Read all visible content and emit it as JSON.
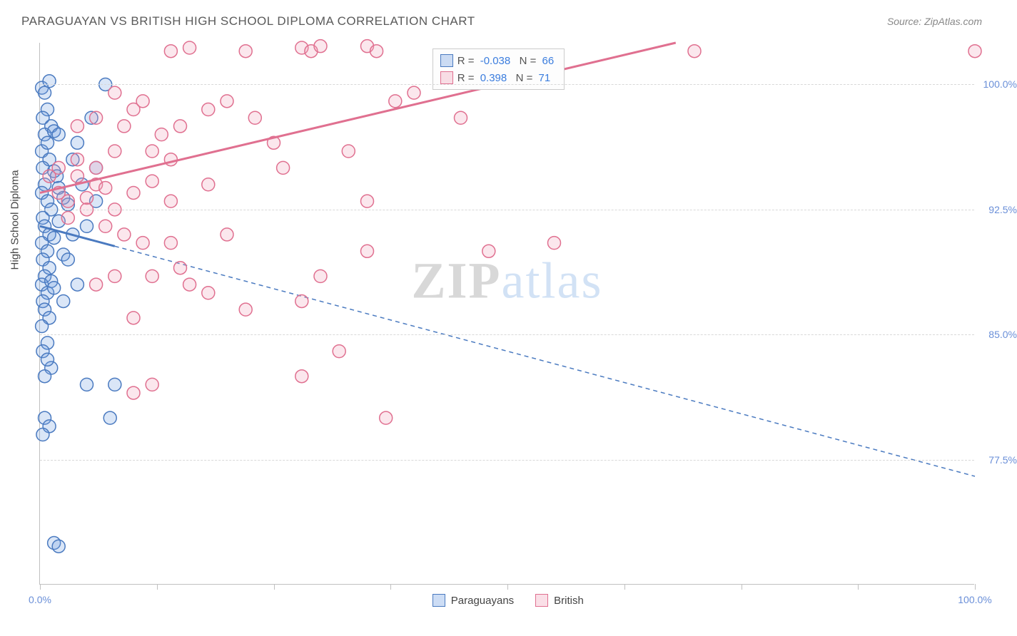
{
  "header": {
    "title": "PARAGUAYAN VS BRITISH HIGH SCHOOL DIPLOMA CORRELATION CHART",
    "source_prefix": "Source: ",
    "source_link": "ZipAtlas.com"
  },
  "chart": {
    "ylabel": "High School Diploma",
    "xlim": [
      0,
      100
    ],
    "ylim": [
      70,
      102.5
    ],
    "xtick_positions": [
      0,
      12.5,
      25,
      37.5,
      50,
      62.5,
      75,
      87.5,
      100
    ],
    "xtick_labels": {
      "0": "0.0%",
      "100": "100.0%"
    },
    "ytick_positions": [
      77.5,
      85.0,
      92.5,
      100.0
    ],
    "ytick_labels": [
      "77.5%",
      "85.0%",
      "92.5%",
      "100.0%"
    ],
    "background_color": "#ffffff",
    "grid_color": "#d8d8d8",
    "axis_color": "#c0c0c0",
    "tick_label_color": "#6a8fd8",
    "marker_radius": 9,
    "marker_fill_opacity": 0.25,
    "marker_stroke_width": 1.5,
    "series": [
      {
        "name": "Paraguayans",
        "color": "#6a9ae0",
        "stroke": "#4a7ac0",
        "R": "-0.038",
        "N": "66",
        "trend": {
          "x1": 0,
          "y1": 91.5,
          "x2": 100,
          "y2": 76.5,
          "solid_until_x": 8
        },
        "points": [
          [
            0.2,
            99.8
          ],
          [
            0.5,
            99.5
          ],
          [
            1.0,
            100.2
          ],
          [
            0.8,
            98.5
          ],
          [
            0.3,
            98.0
          ],
          [
            1.2,
            97.5
          ],
          [
            0.5,
            97.0
          ],
          [
            1.5,
            97.2
          ],
          [
            0.2,
            96.0
          ],
          [
            0.8,
            96.5
          ],
          [
            1.0,
            95.5
          ],
          [
            0.3,
            95.0
          ],
          [
            1.5,
            94.8
          ],
          [
            0.5,
            94.0
          ],
          [
            1.8,
            94.5
          ],
          [
            0.2,
            93.5
          ],
          [
            2.0,
            93.8
          ],
          [
            0.8,
            93.0
          ],
          [
            1.2,
            92.5
          ],
          [
            2.5,
            93.2
          ],
          [
            0.3,
            92.0
          ],
          [
            3.0,
            92.8
          ],
          [
            0.5,
            91.5
          ],
          [
            1.0,
            91.0
          ],
          [
            2.0,
            91.8
          ],
          [
            0.2,
            90.5
          ],
          [
            0.8,
            90.0
          ],
          [
            1.5,
            90.8
          ],
          [
            0.3,
            89.5
          ],
          [
            1.0,
            89.0
          ],
          [
            0.5,
            88.5
          ],
          [
            2.5,
            89.8
          ],
          [
            0.2,
            88.0
          ],
          [
            1.2,
            88.2
          ],
          [
            0.8,
            87.5
          ],
          [
            0.3,
            87.0
          ],
          [
            1.5,
            87.8
          ],
          [
            0.5,
            86.5
          ],
          [
            1.0,
            86.0
          ],
          [
            0.2,
            85.5
          ],
          [
            5.0,
            82.0
          ],
          [
            0.8,
            84.5
          ],
          [
            0.3,
            84.0
          ],
          [
            1.2,
            83.0
          ],
          [
            0.5,
            82.5
          ],
          [
            7.0,
            100.0
          ],
          [
            4.0,
            96.5
          ],
          [
            6.0,
            95.0
          ],
          [
            3.5,
            91.0
          ],
          [
            4.5,
            94.0
          ],
          [
            5.5,
            98.0
          ],
          [
            8.0,
            82.0
          ],
          [
            0.5,
            80.0
          ],
          [
            1.0,
            79.5
          ],
          [
            0.3,
            79.0
          ],
          [
            7.5,
            80.0
          ],
          [
            1.5,
            72.5
          ],
          [
            2.0,
            72.3
          ],
          [
            6.0,
            93.0
          ],
          [
            3.0,
            89.5
          ],
          [
            4.0,
            88.0
          ],
          [
            2.0,
            97.0
          ],
          [
            3.5,
            95.5
          ],
          [
            5.0,
            91.5
          ],
          [
            2.5,
            87.0
          ],
          [
            0.8,
            83.5
          ]
        ]
      },
      {
        "name": "British",
        "color": "#f0a0b8",
        "stroke": "#e07090",
        "R": "0.398",
        "N": "71",
        "trend": {
          "x1": 0,
          "y1": 93.5,
          "x2": 68,
          "y2": 102.5,
          "solid_until_x": 68
        },
        "points": [
          [
            100,
            102
          ],
          [
            70,
            102
          ],
          [
            35,
            102.3
          ],
          [
            36,
            102
          ],
          [
            28,
            102.2
          ],
          [
            29,
            102
          ],
          [
            30,
            102.3
          ],
          [
            22,
            102
          ],
          [
            16,
            102.2
          ],
          [
            14,
            102
          ],
          [
            40,
            99.5
          ],
          [
            45,
            98.0
          ],
          [
            9,
            97.5
          ],
          [
            10,
            98.5
          ],
          [
            11,
            99.0
          ],
          [
            12,
            96.0
          ],
          [
            13,
            97.0
          ],
          [
            2,
            93.5
          ],
          [
            3,
            93.0
          ],
          [
            4,
            94.5
          ],
          [
            5,
            93.2
          ],
          [
            6,
            94.0
          ],
          [
            7,
            93.8
          ],
          [
            8,
            92.5
          ],
          [
            4,
            95.5
          ],
          [
            6,
            95.0
          ],
          [
            8,
            96.0
          ],
          [
            10,
            93.5
          ],
          [
            12,
            94.2
          ],
          [
            14,
            95.5
          ],
          [
            26,
            95.0
          ],
          [
            35,
            93.0
          ],
          [
            14,
            90.5
          ],
          [
            20,
            91.0
          ],
          [
            25,
            96.5
          ],
          [
            33,
            96.0
          ],
          [
            35,
            90.0
          ],
          [
            12,
            88.5
          ],
          [
            15,
            89.0
          ],
          [
            18,
            87.5
          ],
          [
            10,
            86.0
          ],
          [
            28,
            87.0
          ],
          [
            32,
            84.0
          ],
          [
            28,
            82.5
          ],
          [
            10,
            81.5
          ],
          [
            12,
            82.0
          ],
          [
            6,
            88.0
          ],
          [
            8,
            88.5
          ],
          [
            16,
            88.0
          ],
          [
            22,
            86.5
          ],
          [
            30,
            88.5
          ],
          [
            48,
            90.0
          ],
          [
            55,
            90.5
          ],
          [
            37,
            80.0
          ],
          [
            3,
            92.0
          ],
          [
            5,
            92.5
          ],
          [
            7,
            91.5
          ],
          [
            9,
            91.0
          ],
          [
            11,
            90.5
          ],
          [
            4,
            97.5
          ],
          [
            6,
            98.0
          ],
          [
            8,
            99.5
          ],
          [
            15,
            97.5
          ],
          [
            18,
            98.5
          ],
          [
            20,
            99.0
          ],
          [
            23,
            98.0
          ],
          [
            38,
            99.0
          ],
          [
            1,
            94.5
          ],
          [
            2,
            95.0
          ],
          [
            14,
            93.0
          ],
          [
            18,
            94.0
          ]
        ]
      }
    ]
  },
  "legend_bottom": {
    "items": [
      "Paraguayans",
      "British"
    ]
  },
  "watermark": {
    "part1": "ZIP",
    "part2": "atlas"
  }
}
